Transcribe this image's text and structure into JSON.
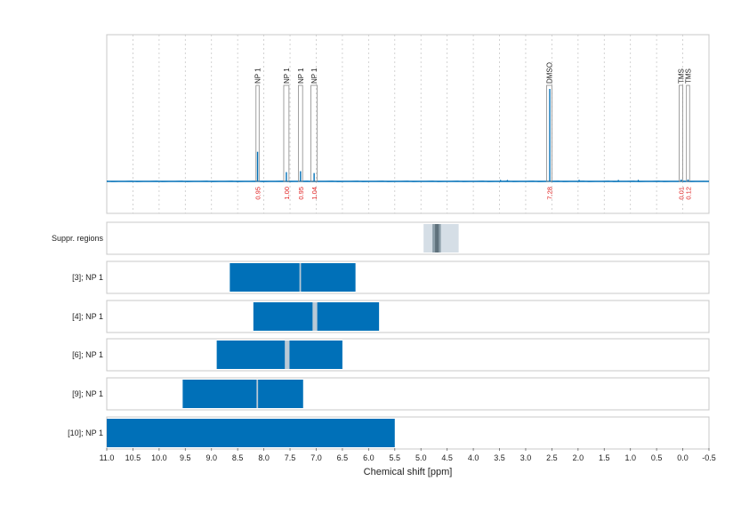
{
  "chart_data": {
    "type": "nmr-spectrum",
    "xlabel": "Chemical shift [ppm]",
    "xlim": [
      11.0,
      -0.5
    ],
    "x_ticks": [
      "11.0",
      "10.5",
      "10.0",
      "9.5",
      "9.0",
      "8.5",
      "8.0",
      "7.5",
      "7.0",
      "6.5",
      "6.0",
      "5.5",
      "5.0",
      "4.5",
      "4.0",
      "3.5",
      "3.0",
      "2.5",
      "2.0",
      "1.5",
      "1.0",
      "0.5",
      "0.0",
      "-0.5"
    ],
    "grid": true,
    "colors": {
      "spectrum": "#0070b8",
      "region": "#0070b8",
      "gap": "#b9c9d6",
      "suppr_light": "#d5dee6",
      "suppr_mid": "#8c9ea9",
      "suppr_dark": "#5f717c",
      "integral_label": "#e02020",
      "frame": "#c8c8c8",
      "grid": "#c8c8c8"
    },
    "baseline_level": 0.0,
    "peaks": [
      {
        "ppm": 8.12,
        "height": 0.32,
        "label": "NP 1",
        "integral": "0.95",
        "box": [
          8.15,
          8.09
        ]
      },
      {
        "ppm": 7.57,
        "height": 0.1,
        "label": "NP 1",
        "integral": "1.00",
        "box": [
          7.62,
          7.52
        ]
      },
      {
        "ppm": 7.3,
        "height": 0.11,
        "label": "NP 1",
        "integral": "0.95",
        "box": [
          7.34,
          7.26
        ]
      },
      {
        "ppm": 7.04,
        "height": 0.09,
        "label": "NP 1",
        "integral": "1.04",
        "box": [
          7.1,
          6.98
        ]
      },
      {
        "ppm": 2.54,
        "height": 1.0,
        "label": "DMSO",
        "integral": "7.28",
        "box": [
          2.6,
          2.5
        ]
      },
      {
        "ppm": 0.03,
        "height": 0.02,
        "label": "TMS",
        "integral": "0.01",
        "box": [
          0.07,
          0.0
        ]
      },
      {
        "ppm": -0.1,
        "height": 0.02,
        "label": "TMS",
        "integral": "0.12",
        "box": [
          -0.07,
          -0.13
        ]
      }
    ],
    "minor_peaks": [
      {
        "ppm": 3.35,
        "height": 0.015
      },
      {
        "ppm": 3.48,
        "height": 0.012
      },
      {
        "ppm": 1.23,
        "height": 0.012
      },
      {
        "ppm": 0.85,
        "height": 0.01
      },
      {
        "ppm": 1.98,
        "height": 0.008
      }
    ],
    "suppression_row": {
      "label": "Suppr. regions",
      "band": [
        4.95,
        4.28
      ],
      "inner": [
        4.78,
        4.62
      ],
      "core": [
        4.73,
        4.66
      ]
    },
    "region_rows": [
      {
        "label": "[3]; NP 1",
        "range": [
          8.65,
          6.25
        ],
        "gaps": [
          [
            7.32,
            7.29
          ]
        ]
      },
      {
        "label": "[4]; NP 1",
        "range": [
          8.2,
          5.8
        ],
        "gaps": [
          [
            7.07,
            6.98
          ]
        ]
      },
      {
        "label": "[6]; NP 1",
        "range": [
          8.9,
          6.5
        ],
        "gaps": [
          [
            7.6,
            7.51
          ]
        ]
      },
      {
        "label": "[9]; NP 1",
        "range": [
          9.55,
          7.25
        ],
        "gaps": [
          [
            8.14,
            8.11
          ]
        ]
      },
      {
        "label": "[10]; NP 1",
        "range": [
          11.0,
          5.5
        ],
        "gaps": []
      }
    ]
  }
}
